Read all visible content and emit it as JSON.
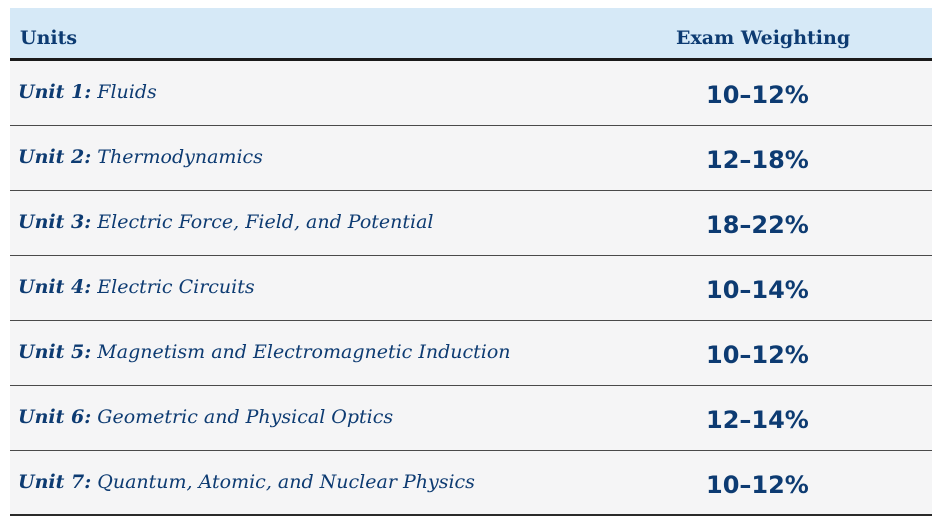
{
  "table": {
    "headers": {
      "units": "Units",
      "weighting": "Exam Weighting"
    },
    "rows": [
      {
        "unit": "Unit 1:",
        "name": "Fluids",
        "weighting": "10–12%"
      },
      {
        "unit": "Unit 2:",
        "name": "Thermodynamics",
        "weighting": "12–18%"
      },
      {
        "unit": "Unit 3:",
        "name": "Electric Force, Field, and Potential",
        "weighting": "18–22%"
      },
      {
        "unit": "Unit 4:",
        "name": "Electric Circuits",
        "weighting": "10–14%"
      },
      {
        "unit": "Unit 5:",
        "name": "Magnetism and Electromagnetic Induction",
        "weighting": "10–12%"
      },
      {
        "unit": "Unit 6:",
        "name": "Geometric and Physical Optics",
        "weighting": "12–14%"
      },
      {
        "unit": "Unit 7:",
        "name": "Quantum, Atomic, and Nuclear Physics",
        "weighting": "10–12%"
      }
    ]
  },
  "colors": {
    "header_bg": "#d6e9f7",
    "text": "#0d3b72",
    "row_bg": "#f5f5f6"
  }
}
